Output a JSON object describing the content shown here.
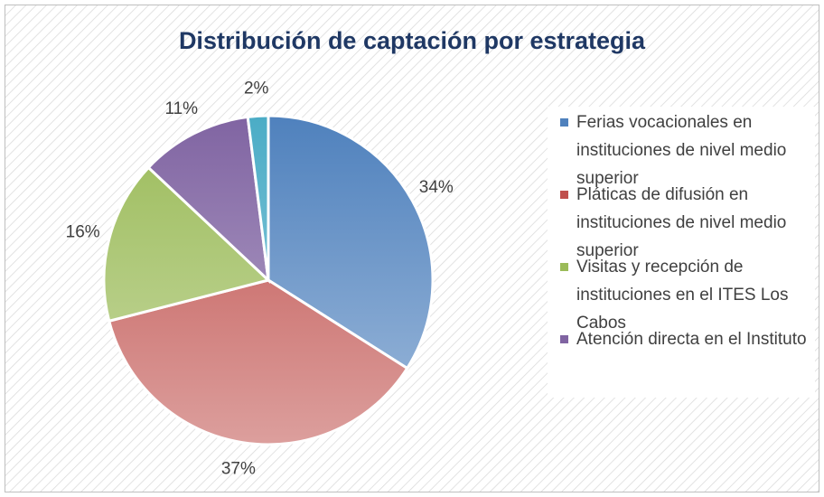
{
  "chart_data": {
    "type": "pie",
    "title": "Distribución de captación por estrategia",
    "categories": [
      "Ferias vocacionales en instituciones de nivel medio superior",
      "Pláticas de difusión en instituciones de nivel medio superior",
      "Visitas y recepción de instituciones en el ITES Los Cabos",
      "Atención directa en el Instituto",
      null
    ],
    "values": [
      34,
      37,
      16,
      11,
      2
    ],
    "value_labels": [
      "34%",
      "37%",
      "16%",
      "11%",
      "2%"
    ],
    "colors": [
      "#4f81bd",
      "#c0504d",
      "#9bbb59",
      "#8064a2",
      "#4bacc6"
    ],
    "legend": "right"
  }
}
